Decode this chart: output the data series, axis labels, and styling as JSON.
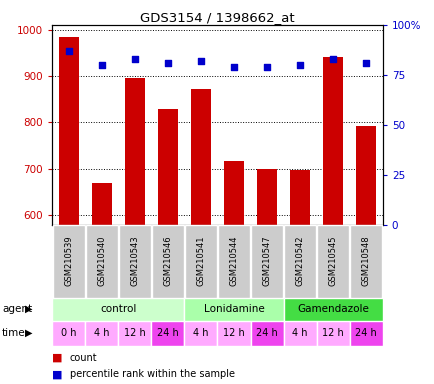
{
  "title": "GDS3154 / 1398662_at",
  "samples": [
    "GSM210539",
    "GSM210540",
    "GSM210543",
    "GSM210546",
    "GSM210541",
    "GSM210544",
    "GSM210547",
    "GSM210542",
    "GSM210545",
    "GSM210548"
  ],
  "counts": [
    985,
    670,
    895,
    828,
    872,
    718,
    700,
    698,
    940,
    793
  ],
  "percentile_ranks": [
    87,
    80,
    83,
    81,
    82,
    79,
    79,
    80,
    83,
    81
  ],
  "ylim_left": [
    580,
    1010
  ],
  "ylim_right": [
    0,
    100
  ],
  "yticks_left": [
    600,
    700,
    800,
    900,
    1000
  ],
  "yticks_right": [
    0,
    25,
    50,
    75,
    100
  ],
  "bar_color": "#cc0000",
  "dot_color": "#0000cc",
  "agent_groups": [
    {
      "label": "control",
      "start": 0,
      "end": 4,
      "color": "#ccffcc"
    },
    {
      "label": "Lonidamine",
      "start": 4,
      "end": 7,
      "color": "#aaffaa"
    },
    {
      "label": "Gamendazole",
      "start": 7,
      "end": 10,
      "color": "#44dd44"
    }
  ],
  "time_labels": [
    "0 h",
    "4 h",
    "12 h",
    "24 h",
    "4 h",
    "12 h",
    "24 h",
    "4 h",
    "12 h",
    "24 h"
  ],
  "time_colors": [
    "#ffaaff",
    "#ffaaff",
    "#ffaaff",
    "#ee44ee",
    "#ffaaff",
    "#ffaaff",
    "#ee44ee",
    "#ffaaff",
    "#ffaaff",
    "#ee44ee"
  ],
  "xlabel_agent": "agent",
  "xlabel_time": "time",
  "legend_count_color": "#cc0000",
  "legend_dot_color": "#0000cc",
  "tick_color_left": "#cc0000",
  "tick_color_right": "#0000cc",
  "bar_width": 0.6,
  "sample_box_color": "#cccccc",
  "fig_width": 4.35,
  "fig_height": 3.84,
  "dpi": 100
}
